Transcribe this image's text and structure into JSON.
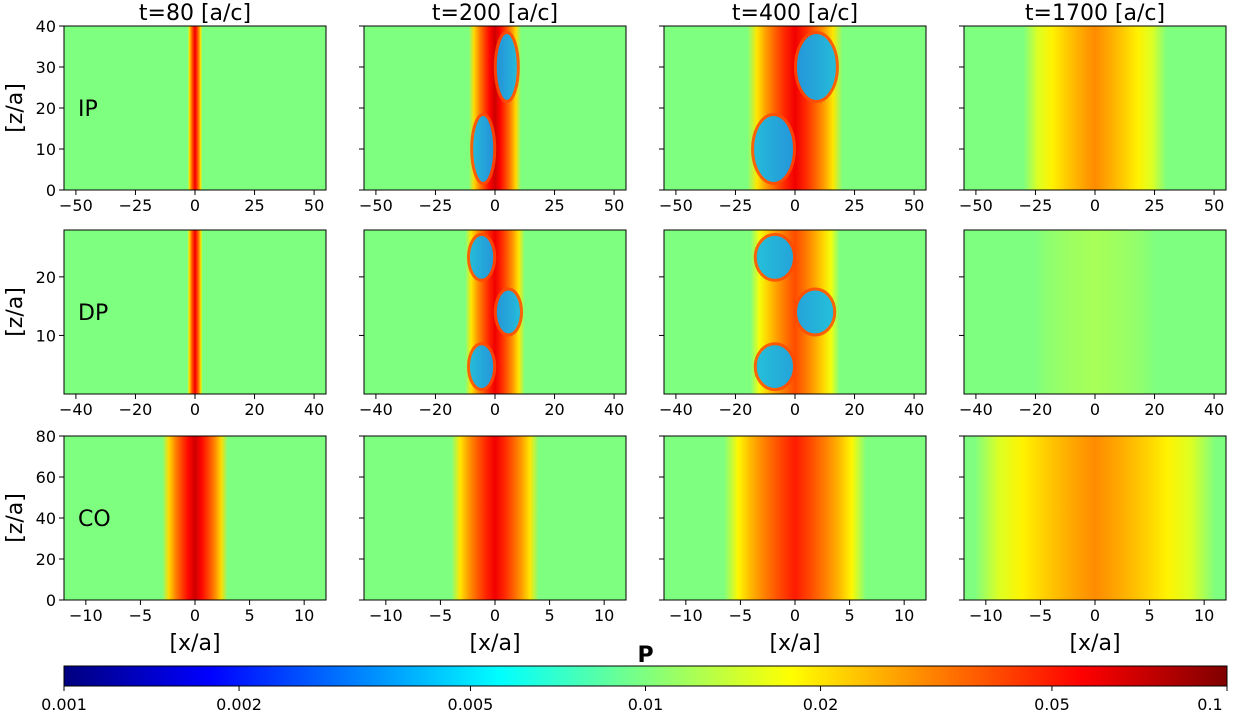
{
  "colormap": {
    "name": "jet",
    "stops": [
      "#00007f",
      "#0000ff",
      "#007fff",
      "#00ffff",
      "#7fff7f",
      "#ffff00",
      "#ff7f00",
      "#ff0000",
      "#7f0000"
    ]
  },
  "colorbar": {
    "label": "P",
    "scale": "log",
    "range": [
      0.001,
      0.1
    ],
    "ticks": [
      0.001,
      0.002,
      0.005,
      0.01,
      0.02,
      0.05,
      0.1
    ],
    "tick_labels": [
      "0.001",
      "0.002",
      "0.005",
      "0.01",
      "0.02",
      "0.05",
      "0.1"
    ]
  },
  "chart_data": {
    "type": "heatmap",
    "grid": "off",
    "columns": [
      {
        "title": "t=80 [a/c]",
        "time": 80
      },
      {
        "title": "t=200 [a/c]",
        "time": 200
      },
      {
        "title": "t=400 [a/c]",
        "time": 400
      },
      {
        "title": "t=1700 [a/c]",
        "time": 1700
      }
    ],
    "rows": [
      {
        "label": "IP",
        "ylabel": "[z/a]",
        "xlim": [
          -55,
          55
        ],
        "ylim": [
          0,
          40
        ],
        "xticks": [
          -50,
          -25,
          0,
          25,
          50
        ],
        "xtick_labels": [
          "−50",
          "−25",
          "0",
          "25",
          "50"
        ],
        "yticks": [
          0,
          10,
          20,
          30,
          40
        ],
        "ytick_labels": [
          "0",
          "10",
          "20",
          "30",
          "40"
        ],
        "layer_half_width": [
          3,
          11,
          20,
          30
        ]
      },
      {
        "label": "DP",
        "ylabel": "[z/a]",
        "xlim": [
          -44,
          44
        ],
        "ylim": [
          0,
          28
        ],
        "xticks": [
          -40,
          -20,
          0,
          20,
          40
        ],
        "xtick_labels": [
          "−40",
          "−20",
          "0",
          "20",
          "40"
        ],
        "yticks": [
          10,
          20
        ],
        "ytick_labels": [
          "10",
          "20"
        ],
        "layer_half_width": [
          2.5,
          10,
          15,
          20
        ]
      },
      {
        "label": "CO",
        "ylabel": "[z/a]",
        "xlim": [
          -12,
          12
        ],
        "ylim": [
          0,
          80
        ],
        "xticks": [
          -10,
          -5,
          0,
          5,
          10
        ],
        "xtick_labels": [
          "−10",
          "−5",
          "0",
          "5",
          "10"
        ],
        "yticks": [
          0,
          20,
          40,
          60,
          80
        ],
        "ytick_labels": [
          "0",
          "20",
          "40",
          "60",
          "80"
        ],
        "xlabel": "[x/a]",
        "layer_half_width": [
          3,
          4,
          6.5,
          11
        ]
      }
    ],
    "background_value": 0.01,
    "peak_values": [
      [
        0.06,
        0.07,
        0.06,
        0.03
      ],
      [
        0.06,
        0.06,
        0.04,
        0.012
      ],
      [
        0.07,
        0.06,
        0.05,
        0.03
      ]
    ]
  }
}
